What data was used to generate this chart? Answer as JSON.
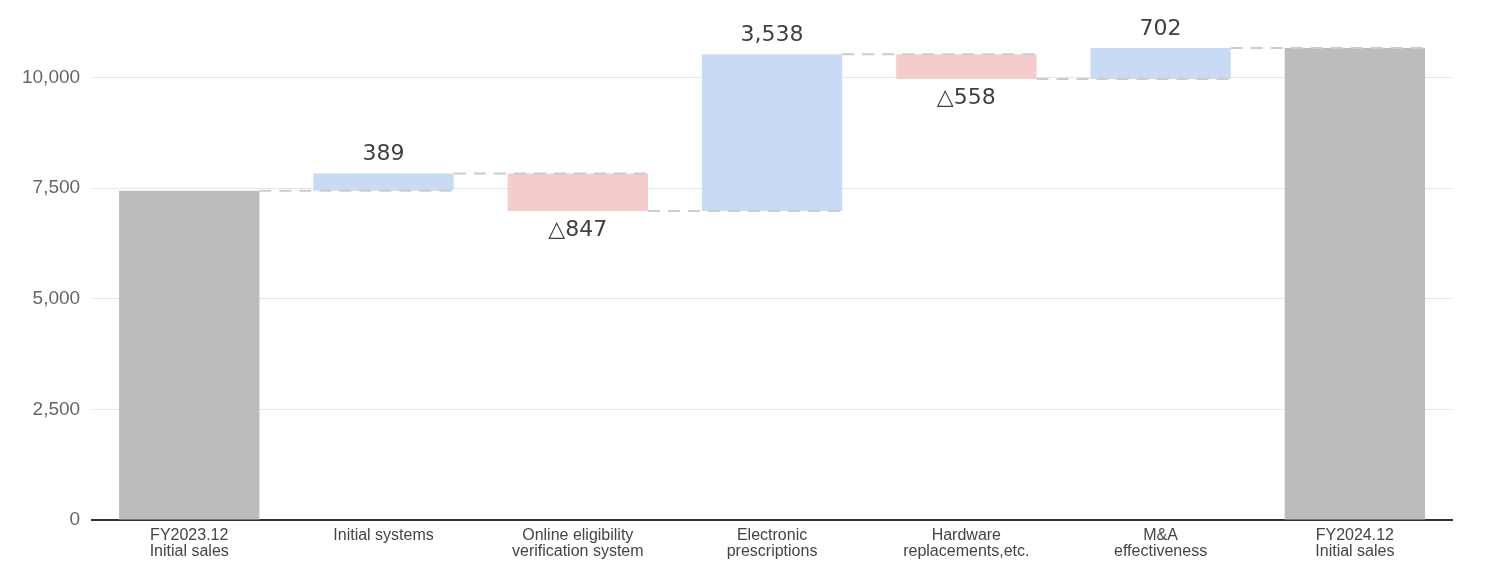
{
  "chart_data": {
    "type": "bar",
    "categories": [
      "FY2023.12\nInitial sales",
      "Initial systems",
      "Online eligibility\nverification system",
      "Electronic\nprescriptions",
      "Hardware\nreplacements,etc.",
      "M&A\neffectiveness",
      "FY2024.12\nInitial sales"
    ],
    "values": [
      7440,
      389,
      -847,
      3538,
      -558,
      702,
      10664
    ],
    "base": [
      0,
      7440,
      7829,
      6982,
      10520,
      9962,
      0
    ],
    "colors": [
      "#bcbcbc",
      "#c9daf5",
      "#f4cccc",
      "#c9daf5",
      "#f4cccc",
      "#c9daf5",
      "#bcbcbc"
    ],
    "value_labels": [
      null,
      "389",
      "△847",
      "3,538",
      "△558",
      "702",
      null
    ],
    "ylim": [
      0,
      10664
    ],
    "yticks": [
      0,
      {
        "value": 2500,
        "label": "2,500"
      },
      {
        "value": 5000,
        "label": "5,000"
      },
      {
        "value": 7500,
        "label": "7,500"
      },
      {
        "value": 10000,
        "label": "10,000"
      }
    ],
    "grid": "y",
    "legend": false
  }
}
